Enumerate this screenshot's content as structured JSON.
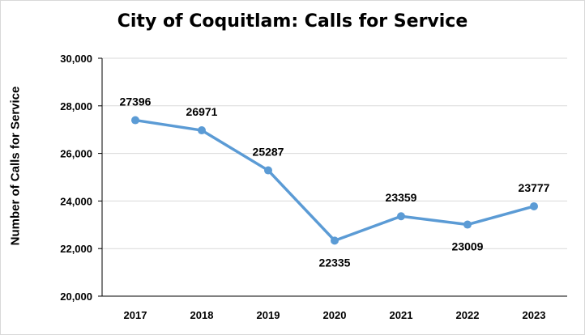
{
  "chart_data": {
    "type": "line",
    "title": "City of Coquitlam: Calls for Service",
    "xlabel": "",
    "ylabel": "Number of Calls for Service",
    "categories": [
      "2017",
      "2018",
      "2019",
      "2020",
      "2021",
      "2022",
      "2023"
    ],
    "series": [
      {
        "values": [
          27396,
          26971,
          25287,
          22335,
          23359,
          23009,
          23777
        ]
      }
    ],
    "data_labels": [
      "27396",
      "26971",
      "25287",
      "22335",
      "23359",
      "23009",
      "23777"
    ],
    "ylim": [
      20000,
      30000
    ],
    "yticks": [
      20000,
      22000,
      24000,
      26000,
      28000,
      30000
    ],
    "ytick_labels": [
      "20,000",
      "22,000",
      "24,000",
      "26,000",
      "28,000",
      "30,000"
    ],
    "grid": true,
    "legend": "none",
    "colors": {
      "line": "#5b9bd5",
      "grid": "#d9d9d9",
      "axis": "#000000"
    }
  }
}
